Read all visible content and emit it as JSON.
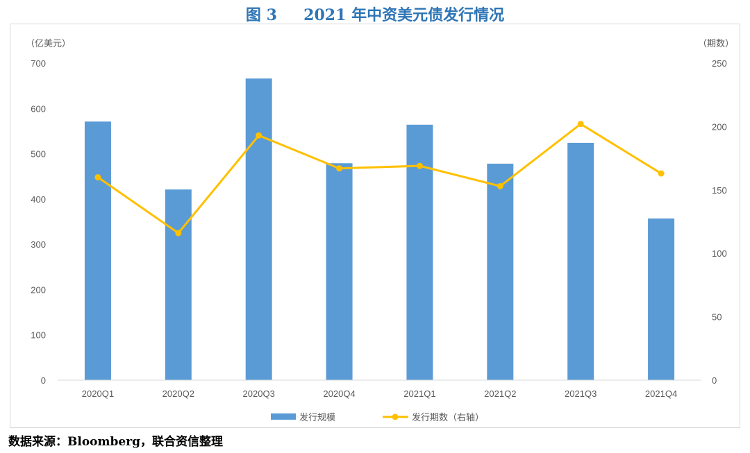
{
  "title": "图 3     2021 年中资美元债发行情况",
  "footer": "数据来源：Bloomberg，联合资信整理",
  "chart_data": {
    "type": "bar+line",
    "categories": [
      "2020Q1",
      "2020Q2",
      "2020Q3",
      "2020Q4",
      "2021Q1",
      "2021Q2",
      "2021Q3",
      "2021Q4"
    ],
    "left_axis": {
      "label": "（亿美元）",
      "range": [
        0,
        700
      ],
      "ticks": [
        0,
        100,
        200,
        300,
        400,
        500,
        600,
        700
      ]
    },
    "right_axis": {
      "label": "（期数）",
      "range": [
        0,
        250
      ],
      "ticks": [
        0,
        50,
        100,
        150,
        200,
        250
      ]
    },
    "series": [
      {
        "name": "发行规模",
        "type": "bar",
        "axis": "left",
        "color": "#5b9bd5",
        "values": [
          571,
          421,
          666,
          479,
          564,
          478,
          524,
          357
        ]
      },
      {
        "name": "发行期数（右轴）",
        "type": "line",
        "axis": "right",
        "color": "#ffc000",
        "values": [
          160,
          116,
          193,
          167,
          169,
          153,
          202,
          163
        ]
      }
    ],
    "grid": false,
    "legend": "bottom"
  }
}
